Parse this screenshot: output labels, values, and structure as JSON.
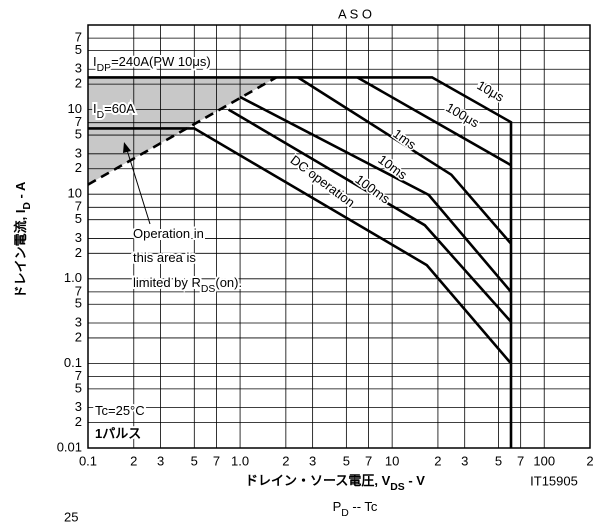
{
  "chart_data": {
    "type": "line",
    "title": "A S O",
    "x_label": [
      "ドレイン・ソース電圧, V",
      "DS",
      " - V"
    ],
    "y_label": [
      "ドレイン電流, I",
      "D",
      " - A"
    ],
    "figure_code": "IT15905",
    "next_title": [
      "P",
      "D",
      " -- Tc"
    ],
    "page_number": "25",
    "log_x": true,
    "log_y": true,
    "grid": true,
    "color": "#000000",
    "xlim": [
      0.1,
      200
    ],
    "ylim": [
      0.01,
      1000
    ],
    "xticks": [
      0.1,
      {
        "value": 0.2,
        "label": "2"
      },
      {
        "value": 0.3,
        "label": "3"
      },
      {
        "value": 0.5,
        "label": "5"
      },
      {
        "value": 0.7,
        "label": "7"
      },
      {
        "value": 1,
        "label": "1.0"
      },
      {
        "value": 2,
        "label": "2"
      },
      {
        "value": 3,
        "label": "3"
      },
      {
        "value": 5,
        "label": "5"
      },
      {
        "value": 7,
        "label": "7"
      },
      10,
      {
        "value": 20,
        "label": "2"
      },
      {
        "value": 30,
        "label": "3"
      },
      {
        "value": 50,
        "label": "5"
      },
      {
        "value": 70,
        "label": "7"
      },
      100,
      {
        "value": 200,
        "label": "2"
      }
    ],
    "yticks": [
      {
        "value": 700,
        "label": "7"
      },
      {
        "value": 500,
        "label": "5"
      },
      {
        "value": 300,
        "label": "3"
      },
      {
        "value": 200,
        "label": "2"
      },
      {
        "value": 100,
        "label": "10"
      },
      {
        "value": 70,
        "label": "7"
      },
      {
        "value": 50,
        "label": "5"
      },
      {
        "value": 30,
        "label": "3"
      },
      {
        "value": 20,
        "label": "2"
      },
      10,
      {
        "value": 7,
        "label": "7"
      },
      {
        "value": 5,
        "label": "5"
      },
      {
        "value": 3,
        "label": "3"
      },
      {
        "value": 2,
        "label": "2"
      },
      {
        "value": 1,
        "label": "1.0"
      },
      {
        "value": 0.7,
        "label": "7"
      },
      {
        "value": 0.5,
        "label": "5"
      },
      {
        "value": 0.3,
        "label": "3"
      },
      {
        "value": 0.2,
        "label": "2"
      },
      0.1,
      {
        "value": 0.07,
        "label": "7"
      },
      {
        "value": 0.05,
        "label": "5"
      },
      {
        "value": 0.03,
        "label": "3"
      },
      {
        "value": 0.02,
        "label": "2"
      },
      0.01
    ],
    "series": [
      {
        "name": "10μs",
        "x": [
          0.1,
          18.3,
          60.5,
          60.5
        ],
        "values": [
          240,
          240,
          71,
          0.01
        ]
      },
      {
        "name": "100μs",
        "x": [
          5.9,
          60.5
        ],
        "values": [
          240,
          22
        ]
      },
      {
        "name": "1ms",
        "x": [
          2.4,
          24.5,
          60.5
        ],
        "values": [
          240,
          17,
          2.6
        ]
      },
      {
        "name": "10ms",
        "x": [
          1.0,
          17.4,
          60.5
        ],
        "values": [
          141,
          9.8,
          0.7
        ]
      },
      {
        "name": "100ms",
        "x": [
          0.84,
          16.4,
          60.5
        ],
        "values": [
          100,
          4.3,
          0.31
        ]
      },
      {
        "name": "DC operation",
        "x": [
          0.1,
          0.5,
          16.9,
          60.5
        ],
        "values": [
          60,
          60,
          1.45,
          0.1
        ]
      },
      {
        "x": [
          0.1,
          1.73
        ],
        "values": [
          13,
          240
        ],
        "dashed": true
      }
    ],
    "annotations": [
      [
        "I",
        "DP",
        "=240A(PW  10μs)"
      ],
      [
        "I",
        "D",
        "=60A"
      ],
      [
        "Operation in"
      ],
      [
        "this area is"
      ],
      [
        "limited by R",
        "DS",
        "(on)."
      ],
      [
        "Tc=25°C"
      ],
      [
        "1パルス"
      ]
    ]
  }
}
